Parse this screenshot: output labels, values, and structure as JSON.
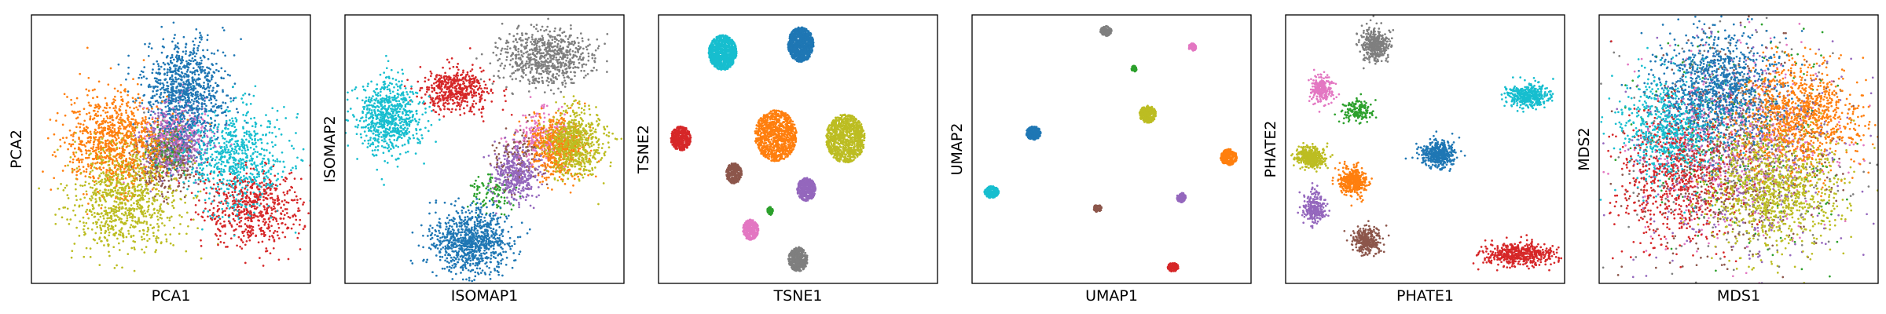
{
  "chart_data": [
    {
      "type": "scatter",
      "xlabel": "PCA1",
      "ylabel": "PCA2",
      "xticks": false,
      "yticks": false,
      "grid": false,
      "xlim": [
        0,
        100
      ],
      "ylim": [
        0,
        100
      ],
      "spread": "gaussian",
      "clusters": [
        {
          "color": "#1f77b4",
          "center": [
            55,
            72
          ],
          "spread": [
            7,
            9
          ],
          "count": 900
        },
        {
          "color": "#ff7f0e",
          "center": [
            30,
            53
          ],
          "spread": [
            9,
            9
          ],
          "count": 900
        },
        {
          "color": "#2ca02c",
          "center": [
            50,
            50
          ],
          "spread": [
            4,
            4
          ],
          "count": 150
        },
        {
          "color": "#d62728",
          "center": [
            79,
            28
          ],
          "spread": [
            9,
            7
          ],
          "count": 600
        },
        {
          "color": "#9467bd",
          "center": [
            52,
            52
          ],
          "spread": [
            7,
            7
          ],
          "count": 350
        },
        {
          "color": "#8c564b",
          "center": [
            48,
            45
          ],
          "spread": [
            6,
            6
          ],
          "count": 250
        },
        {
          "color": "#e377c2",
          "center": [
            52,
            56
          ],
          "spread": [
            6,
            6
          ],
          "count": 250
        },
        {
          "color": "#7f7f7f",
          "center": [
            50,
            50
          ],
          "spread": [
            5,
            5
          ],
          "count": 150
        },
        {
          "color": "#bcbd22",
          "center": [
            33,
            32
          ],
          "spread": [
            10,
            10
          ],
          "count": 900
        },
        {
          "color": "#17becf",
          "center": [
            73,
            47
          ],
          "spread": [
            9,
            9
          ],
          "count": 700
        }
      ]
    },
    {
      "type": "scatter",
      "xlabel": "ISOMAP1",
      "ylabel": "ISOMAP2",
      "xticks": false,
      "yticks": false,
      "grid": false,
      "xlim": [
        0,
        100
      ],
      "ylim": [
        0,
        100
      ],
      "spread": "gaussian",
      "clusters": [
        {
          "color": "#1f77b4",
          "center": [
            45,
            16
          ],
          "spread": [
            7,
            6
          ],
          "count": 900
        },
        {
          "color": "#ff7f0e",
          "center": [
            76,
            51
          ],
          "spread": [
            5,
            6
          ],
          "count": 500
        },
        {
          "color": "#2ca02c",
          "center": [
            53,
            34
          ],
          "spread": [
            4,
            4
          ],
          "count": 100
        },
        {
          "color": "#d62728",
          "center": [
            39,
            72
          ],
          "spread": [
            6,
            4
          ],
          "count": 500
        },
        {
          "color": "#9467bd",
          "center": [
            61,
            41
          ],
          "spread": [
            4,
            5
          ],
          "count": 400
        },
        {
          "color": "#8c564b",
          "center": [
            63,
            47
          ],
          "spread": [
            5,
            5
          ],
          "count": 150
        },
        {
          "color": "#e377c2",
          "center": [
            70,
            55
          ],
          "spread": [
            5,
            5
          ],
          "count": 200
        },
        {
          "color": "#7f7f7f",
          "center": [
            72,
            84
          ],
          "spread": [
            8,
            5
          ],
          "count": 700
        },
        {
          "color": "#bcbd22",
          "center": [
            82,
            52
          ],
          "spread": [
            5,
            6
          ],
          "count": 700
        },
        {
          "color": "#17becf",
          "center": [
            16,
            62
          ],
          "spread": [
            6,
            7
          ],
          "count": 700
        }
      ]
    },
    {
      "type": "scatter",
      "xlabel": "TSNE1",
      "ylabel": "TSNE2",
      "xticks": false,
      "yticks": false,
      "grid": false,
      "xlim": [
        0,
        100
      ],
      "ylim": [
        0,
        100
      ],
      "spread": "disk",
      "clusters": [
        {
          "color": "#1f77b4",
          "center": [
            51,
            89
          ],
          "spread": [
            4.6,
            6.5
          ],
          "count": 900
        },
        {
          "color": "#ff7f0e",
          "center": [
            42,
            55
          ],
          "spread": [
            7.5,
            9.5
          ],
          "count": 1000
        },
        {
          "color": "#2ca02c",
          "center": [
            40,
            27
          ],
          "spread": [
            1.0,
            1.5
          ],
          "count": 60
        },
        {
          "color": "#d62728",
          "center": [
            8,
            54
          ],
          "spread": [
            3.6,
            4.5
          ],
          "count": 400
        },
        {
          "color": "#9467bd",
          "center": [
            53,
            35
          ],
          "spread": [
            3.3,
            4.3
          ],
          "count": 400
        },
        {
          "color": "#8c564b",
          "center": [
            27,
            41
          ],
          "spread": [
            2.8,
            3.8
          ],
          "count": 300
        },
        {
          "color": "#e377c2",
          "center": [
            33,
            20
          ],
          "spread": [
            2.8,
            3.8
          ],
          "count": 300
        },
        {
          "color": "#7f7f7f",
          "center": [
            50,
            9
          ],
          "spread": [
            3.5,
            4.5
          ],
          "count": 400
        },
        {
          "color": "#bcbd22",
          "center": [
            67,
            54
          ],
          "spread": [
            7.0,
            9.0
          ],
          "count": 1000
        },
        {
          "color": "#17becf",
          "center": [
            23,
            86
          ],
          "spread": [
            5.0,
            6.5
          ],
          "count": 900
        }
      ]
    },
    {
      "type": "scatter",
      "xlabel": "UMAP1",
      "ylabel": "UMAP2",
      "xticks": false,
      "yticks": false,
      "grid": false,
      "xlim": [
        0,
        100
      ],
      "ylim": [
        0,
        100
      ],
      "spread": "disk",
      "clusters": [
        {
          "color": "#1f77b4",
          "center": [
            22,
            56
          ],
          "spread": [
            2.6,
            2.5
          ],
          "count": 250
        },
        {
          "color": "#ff7f0e",
          "center": [
            92,
            47
          ],
          "spread": [
            2.9,
            3.0
          ],
          "count": 300
        },
        {
          "color": "#2ca02c",
          "center": [
            58,
            80
          ],
          "spread": [
            1.0,
            1.2
          ],
          "count": 60
        },
        {
          "color": "#d62728",
          "center": [
            72,
            6
          ],
          "spread": [
            2.0,
            1.6
          ],
          "count": 150
        },
        {
          "color": "#9467bd",
          "center": [
            75,
            32
          ],
          "spread": [
            1.6,
            1.8
          ],
          "count": 120
        },
        {
          "color": "#8c564b",
          "center": [
            45,
            28
          ],
          "spread": [
            1.4,
            1.4
          ],
          "count": 80
        },
        {
          "color": "#e377c2",
          "center": [
            79,
            88
          ],
          "spread": [
            1.4,
            1.4
          ],
          "count": 100
        },
        {
          "color": "#7f7f7f",
          "center": [
            48,
            94
          ],
          "spread": [
            2.0,
            1.8
          ],
          "count": 150
        },
        {
          "color": "#bcbd22",
          "center": [
            63,
            63
          ],
          "spread": [
            3.0,
            3.2
          ],
          "count": 300
        },
        {
          "color": "#17becf",
          "center": [
            7,
            34
          ],
          "spread": [
            2.6,
            2.2
          ],
          "count": 200
        }
      ]
    },
    {
      "type": "scatter",
      "xlabel": "PHATE1",
      "ylabel": "PHATE2",
      "xticks": false,
      "yticks": false,
      "grid": false,
      "xlim": [
        0,
        100
      ],
      "ylim": [
        0,
        100
      ],
      "spread": "gaussian",
      "clusters": [
        {
          "color": "#1f77b4",
          "center": [
            55,
            48
          ],
          "spread": [
            3,
            2.5
          ],
          "count": 400
        },
        {
          "color": "#ff7f0e",
          "center": [
            24,
            38
          ],
          "spread": [
            2.5,
            2.5
          ],
          "count": 400
        },
        {
          "color": "#2ca02c",
          "center": [
            26,
            64
          ],
          "spread": [
            2.5,
            2
          ],
          "count": 150
        },
        {
          "color": "#d62728",
          "center": [
            84,
            11
          ],
          "spread": [
            6,
            2.2
          ],
          "count": 500
        },
        {
          "color": "#9467bd",
          "center": [
            10,
            28
          ],
          "spread": [
            2,
            3
          ],
          "count": 250
        },
        {
          "color": "#8c564b",
          "center": [
            29,
            16
          ],
          "spread": [
            2.5,
            2.5
          ],
          "count": 300
        },
        {
          "color": "#e377c2",
          "center": [
            13,
            72
          ],
          "spread": [
            2,
            2.5
          ],
          "count": 250
        },
        {
          "color": "#7f7f7f",
          "center": [
            32,
            89
          ],
          "spread": [
            2.5,
            3
          ],
          "count": 400
        },
        {
          "color": "#bcbd22",
          "center": [
            9,
            47
          ],
          "spread": [
            2.5,
            2
          ],
          "count": 400
        },
        {
          "color": "#17becf",
          "center": [
            87,
            70
          ],
          "spread": [
            4,
            2.2
          ],
          "count": 400
        }
      ]
    },
    {
      "type": "scatter",
      "xlabel": "MDS1",
      "ylabel": "MDS2",
      "xticks": false,
      "yticks": false,
      "grid": false,
      "xlim": [
        0,
        100
      ],
      "ylim": [
        0,
        100
      ],
      "spread": "gaussian",
      "clusters": [
        {
          "color": "#1f77b4",
          "center": [
            43,
            73
          ],
          "spread": [
            11,
            10
          ],
          "count": 1000
        },
        {
          "color": "#ff7f0e",
          "center": [
            72,
            62
          ],
          "spread": [
            11,
            10
          ],
          "count": 1000
        },
        {
          "color": "#2ca02c",
          "center": [
            50,
            50
          ],
          "spread": [
            20,
            20
          ],
          "count": 250
        },
        {
          "color": "#d62728",
          "center": [
            28,
            40
          ],
          "spread": [
            11,
            13
          ],
          "count": 700
        },
        {
          "color": "#9467bd",
          "center": [
            50,
            48
          ],
          "spread": [
            19,
            19
          ],
          "count": 500
        },
        {
          "color": "#8c564b",
          "center": [
            50,
            48
          ],
          "spread": [
            19,
            19
          ],
          "count": 500
        },
        {
          "color": "#e377c2",
          "center": [
            50,
            52
          ],
          "spread": [
            19,
            19
          ],
          "count": 500
        },
        {
          "color": "#7f7f7f",
          "center": [
            50,
            50
          ],
          "spread": [
            19,
            19
          ],
          "count": 400
        },
        {
          "color": "#bcbd22",
          "center": [
            63,
            34
          ],
          "spread": [
            12,
            11
          ],
          "count": 1000
        },
        {
          "color": "#17becf",
          "center": [
            25,
            58
          ],
          "spread": [
            9,
            10
          ],
          "count": 700
        }
      ]
    }
  ]
}
